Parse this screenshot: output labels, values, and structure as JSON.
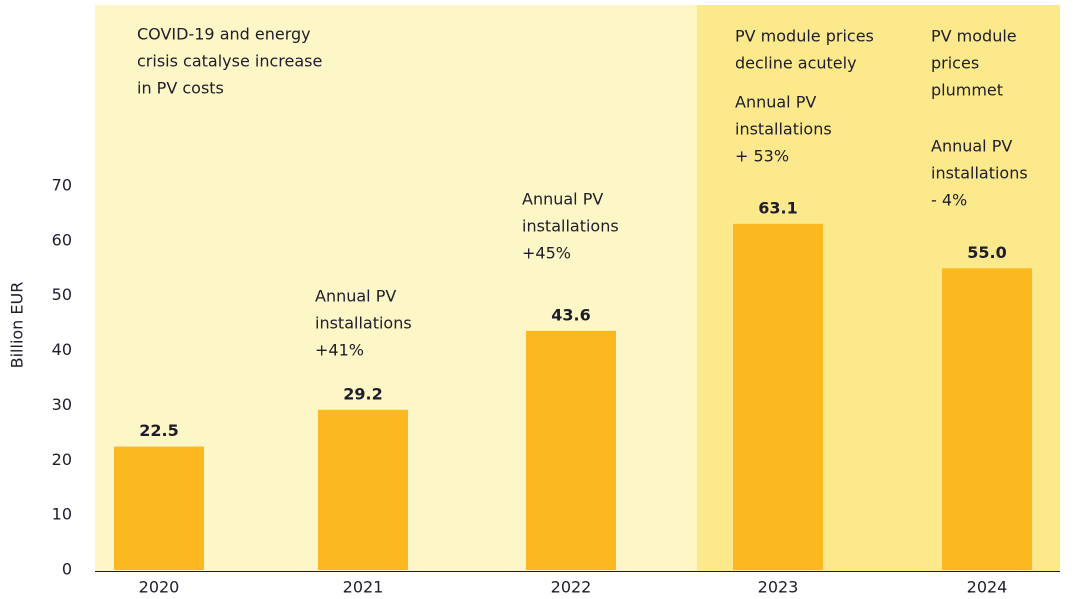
{
  "chart_data": {
    "type": "bar",
    "y_label": "Billion EUR",
    "categories": [
      "2020",
      "2021",
      "2022",
      "2023",
      "2024"
    ],
    "values": [
      22.5,
      29.2,
      43.6,
      63.1,
      55.0
    ],
    "value_labels": [
      "22.5",
      "29.2",
      "43.6",
      "63.1",
      "55.0"
    ],
    "color": "#fbb81f",
    "ylim": [
      0,
      70
    ],
    "yticks": [
      0,
      10,
      20,
      30,
      40,
      50,
      60,
      70
    ],
    "grid": false,
    "annotations": [
      [
        "COVID-19 and energy",
        "crisis catalyse increase",
        "in PV costs"
      ],
      [
        "Annual PV",
        "installations",
        "+41%"
      ],
      [
        "Annual PV",
        "installations",
        "+45%"
      ],
      [
        "PV module prices",
        "decline acutely"
      ],
      [
        "Annual PV",
        "installations",
        "+ 53%"
      ],
      [
        "PV module",
        "prices",
        "plummet"
      ],
      [
        "Annual PV",
        "installations",
        "- 4%"
      ]
    ]
  }
}
